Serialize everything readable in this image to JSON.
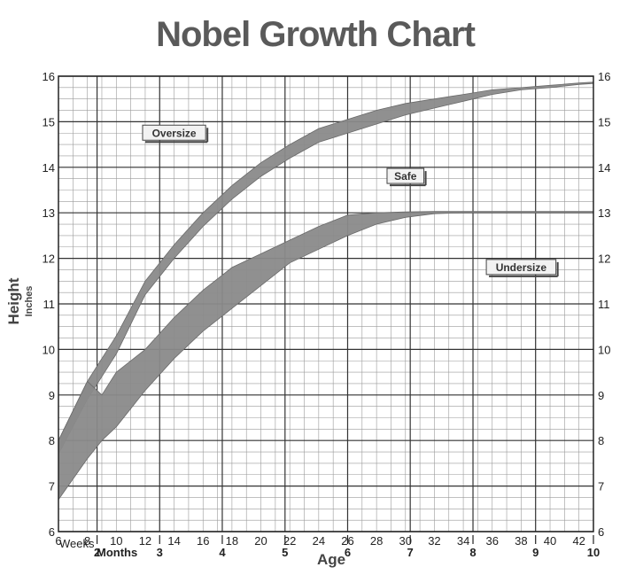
{
  "chart_data": {
    "type": "area",
    "title": "Nobel Growth Chart",
    "xlabel": "Age",
    "ylabel": "Height",
    "ylabel_unit": "Inches",
    "weeks_unit": "Weeks",
    "months_unit": "Months",
    "x_unit": "weeks",
    "xlim": [
      6,
      43
    ],
    "ylim": [
      6,
      16
    ],
    "week_ticks": [
      "6",
      "8",
      "10",
      "12",
      "14",
      "16",
      "18",
      "20",
      "22",
      "24",
      "26",
      "28",
      "30",
      "32",
      "34",
      "36",
      "38",
      "40",
      "42"
    ],
    "month_ticks": [
      {
        "label": "2",
        "week": 8.67
      },
      {
        "label": "3",
        "week": 13
      },
      {
        "label": "4",
        "week": 17.33
      },
      {
        "label": "5",
        "week": 21.67
      },
      {
        "label": "6",
        "week": 26
      },
      {
        "label": "7",
        "week": 30.33
      },
      {
        "label": "8",
        "week": 34.67
      },
      {
        "label": "9",
        "week": 39
      },
      {
        "label": "10",
        "week": 43.33
      }
    ],
    "y_ticks": [
      "6",
      "7",
      "8",
      "9",
      "10",
      "11",
      "12",
      "13",
      "14",
      "15",
      "16"
    ],
    "series": [
      {
        "color": "#8a8a8a",
        "x": [
          6,
          8,
          10,
          12,
          14,
          16,
          18,
          20,
          22,
          24,
          26,
          28,
          30,
          32,
          34,
          36,
          38,
          40,
          42,
          43
        ],
        "upper": [
          8.0,
          9.3,
          10.3,
          11.5,
          12.3,
          13.0,
          13.6,
          14.1,
          14.5,
          14.85,
          15.05,
          15.25,
          15.4,
          15.5,
          15.6,
          15.7,
          15.75,
          15.8,
          15.85,
          15.87
        ],
        "lower": [
          7.7,
          8.9,
          9.9,
          11.2,
          12.0,
          12.7,
          13.3,
          13.8,
          14.2,
          14.55,
          14.75,
          14.95,
          15.15,
          15.3,
          15.45,
          15.6,
          15.7,
          15.75,
          15.82,
          15.84
        ]
      },
      {
        "color": "#8a8a8a",
        "x": [
          6,
          8,
          9,
          10,
          12,
          14,
          16,
          18,
          20,
          22,
          24,
          26,
          28,
          30,
          32,
          34,
          36,
          38,
          40,
          42,
          43
        ],
        "upper": [
          8.0,
          9.3,
          9.0,
          9.5,
          10.0,
          10.7,
          11.3,
          11.8,
          12.1,
          12.4,
          12.7,
          12.95,
          13.0,
          13.02,
          13.03,
          13.03,
          13.03,
          13.03,
          13.03,
          13.03,
          13.03
        ],
        "lower": [
          6.7,
          7.6,
          8.0,
          8.3,
          9.1,
          9.8,
          10.4,
          10.9,
          11.4,
          11.9,
          12.2,
          12.5,
          12.75,
          12.9,
          12.98,
          13.0,
          13.0,
          13.0,
          13.0,
          13.0,
          13.0
        ]
      }
    ],
    "zone_labels": [
      {
        "text": "Oversize",
        "x": 14,
        "y": 14.75
      },
      {
        "text": "Safe",
        "x": 30,
        "y": 13.8
      },
      {
        "text": "Undersize",
        "x": 38,
        "y": 11.8
      }
    ],
    "grid": true
  }
}
